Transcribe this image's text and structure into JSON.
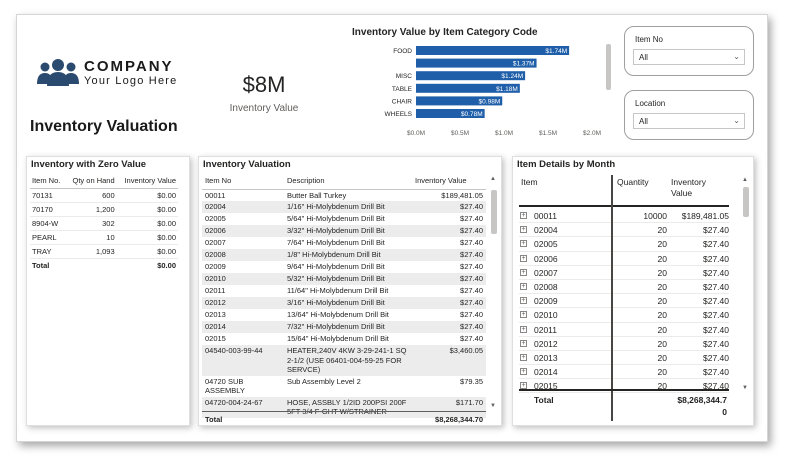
{
  "logo": {
    "icon": "people-group-icon",
    "name": "COMPANY",
    "tagline": "Your Logo Here",
    "color": "#2b4a6f"
  },
  "page_title": "Inventory Valuation",
  "kpi": {
    "value": "$8M",
    "label": "Inventory Value"
  },
  "chart_data": {
    "type": "bar",
    "orientation": "horizontal",
    "title": "Inventory Value by Item Category Code",
    "categories": [
      "FOOD",
      "",
      "MISC",
      "TABLE",
      "CHAIR",
      "WHEELS"
    ],
    "values": [
      1.74,
      1.37,
      1.24,
      1.18,
      0.98,
      0.78
    ],
    "value_labels": [
      "$1.74M",
      "$1.37M",
      "$1.24M",
      "$1.18M",
      "$0.98M",
      "$0.78M"
    ],
    "xlim": [
      0,
      2.0
    ],
    "ticks": [
      0,
      0.5,
      1.0,
      1.5,
      2.0
    ],
    "tick_labels": [
      "$0.0M",
      "$0.5M",
      "$1.0M",
      "$1.5M",
      "$2.0M"
    ],
    "color": "#1f5fa9"
  },
  "slicers": {
    "item_no": {
      "label": "Item No",
      "value": "All",
      "icon": "chevron-down-icon"
    },
    "location": {
      "label": "Location",
      "value": "All",
      "icon": "chevron-down-icon"
    }
  },
  "zero_value": {
    "title": "Inventory with Zero Value",
    "headers": [
      "Item No.",
      "Qty on Hand",
      "Inventory Value"
    ],
    "rows": [
      {
        "item": "70131",
        "qty": "600",
        "value": "$0.00"
      },
      {
        "item": "70170",
        "qty": "1,200",
        "value": "$0.00"
      },
      {
        "item": "8904-W",
        "qty": "302",
        "value": "$0.00"
      },
      {
        "item": "PEARL",
        "qty": "10",
        "value": "$0.00"
      },
      {
        "item": "TRAY",
        "qty": "1,093",
        "value": "$0.00"
      }
    ],
    "total_label": "Total",
    "total_value": "$0.00"
  },
  "valuation": {
    "title": "Inventory Valuation",
    "headers": [
      "Item No",
      "Description",
      "Inventory Value"
    ],
    "rows": [
      {
        "item": "00011",
        "desc": "Butter Ball Turkey",
        "value": "$189,481.05"
      },
      {
        "item": "02004",
        "desc": "1/16\" Hi-Molybdenum Drill Bit",
        "value": "$27.40"
      },
      {
        "item": "02005",
        "desc": "5/64\" Hi-Molybdenum Drill Bit",
        "value": "$27.40"
      },
      {
        "item": "02006",
        "desc": "3/32\" Hi-Molybdenum Drill Bit",
        "value": "$27.40"
      },
      {
        "item": "02007",
        "desc": "7/64\" Hi-Molybdenum Drill Bit",
        "value": "$27.40"
      },
      {
        "item": "02008",
        "desc": "1/8\" Hi-Molybdenum Drill Bit",
        "value": "$27.40"
      },
      {
        "item": "02009",
        "desc": "9/64\" Hi-Molybdenum Drill Bit",
        "value": "$27.40"
      },
      {
        "item": "02010",
        "desc": "5/32\" Hi-Molybdenum Drill Bit",
        "value": "$27.40"
      },
      {
        "item": "02011",
        "desc": "11/64\" Hi-Molybdenum Drill Bit",
        "value": "$27.40"
      },
      {
        "item": "02012",
        "desc": "3/16\" Hi-Molybdenum Drill Bit",
        "value": "$27.40"
      },
      {
        "item": "02013",
        "desc": "13/64\" Hi-Molybdenum Drill Bit",
        "value": "$27.40"
      },
      {
        "item": "02014",
        "desc": "7/32\" Hi-Molybdenum Drill Bit",
        "value": "$27.40"
      },
      {
        "item": "02015",
        "desc": "15/64\" Hi-Molybdenum Drill Bit",
        "value": "$27.40"
      },
      {
        "item": "04540-003-99-44",
        "desc": "HEATER,240V 4KW 3-29-241-1 SQ 2-1/2 (USE 06401-004-59-25 FOR SERVCE)",
        "value": "$3,460.05"
      },
      {
        "item": "04720 SUB ASSEMBLY",
        "desc": "Sub Assembly Level 2",
        "value": "$79.35"
      },
      {
        "item": "04720-004-24-67",
        "desc": "HOSE, ASSBLY 1/2ID 200PSI 200F 5FT 3/4 F-GHT W/STRAINER",
        "value": "$171.70"
      }
    ],
    "total_label": "Total",
    "total_value": "$8,268,344.70"
  },
  "by_month": {
    "title": "Item Details by Month",
    "headers": {
      "item": "Item",
      "quantity": "Quantity",
      "value_line1": "Inventory",
      "value_line2": "Value"
    },
    "rows": [
      {
        "item": "00011",
        "qty": "10000",
        "value": "$189,481.05"
      },
      {
        "item": "02004",
        "qty": "20",
        "value": "$27.40"
      },
      {
        "item": "02005",
        "qty": "20",
        "value": "$27.40"
      },
      {
        "item": "02006",
        "qty": "20",
        "value": "$27.40"
      },
      {
        "item": "02007",
        "qty": "20",
        "value": "$27.40"
      },
      {
        "item": "02008",
        "qty": "20",
        "value": "$27.40"
      },
      {
        "item": "02009",
        "qty": "20",
        "value": "$27.40"
      },
      {
        "item": "02010",
        "qty": "20",
        "value": "$27.40"
      },
      {
        "item": "02011",
        "qty": "20",
        "value": "$27.40"
      },
      {
        "item": "02012",
        "qty": "20",
        "value": "$27.40"
      },
      {
        "item": "02013",
        "qty": "20",
        "value": "$27.40"
      },
      {
        "item": "02014",
        "qty": "20",
        "value": "$27.40"
      },
      {
        "item": "02015",
        "qty": "20",
        "value": "$27.40"
      }
    ],
    "total_label": "Total",
    "total_value": "$8,268,344.7",
    "total_value2": "0"
  }
}
